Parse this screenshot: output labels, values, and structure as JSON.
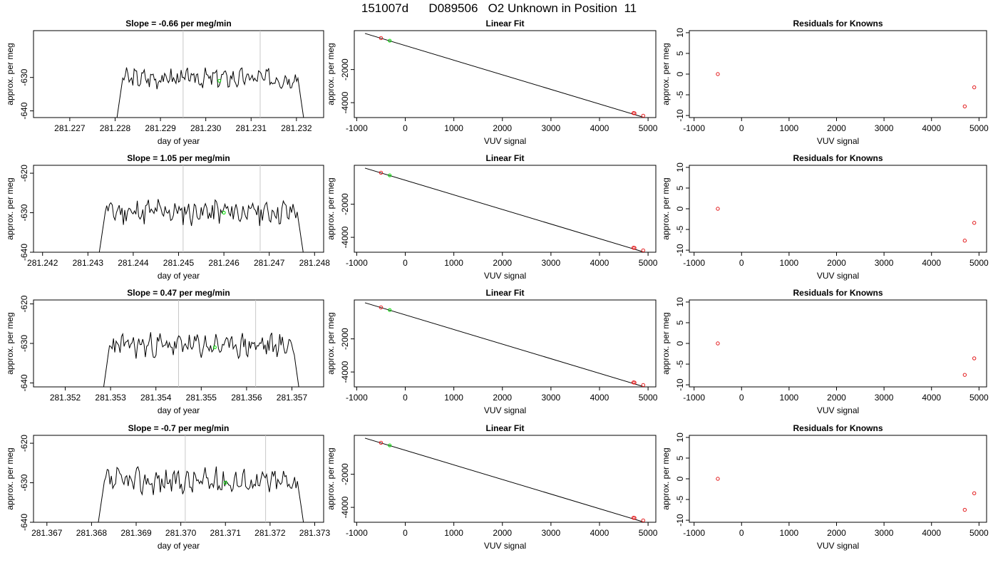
{
  "main_title": "151007d      D089506   O2 Unknown in Position  11",
  "colors": {
    "line": "#000000",
    "known_point": "#e31a1c",
    "unknown_point": "#00dd00",
    "vline": "#c8c8c8"
  },
  "chart_data": [
    {
      "type": "line",
      "title": "Slope =  -0.66  per meg/min",
      "xlabel": "day of year",
      "ylabel": "approx. per meg",
      "xlim": [
        281.2262,
        281.2326
      ],
      "ylim": [
        -642,
        -616
      ],
      "xticks": [
        "281.227",
        "281.228",
        "281.229",
        "281.230",
        "281.231",
        "281.232"
      ],
      "yticks": [
        "-640",
        "-630"
      ],
      "x_start": 281.228,
      "x_end": 281.2322,
      "base": -630.2,
      "amp": 2.3,
      "seed": 3,
      "vlines": [
        281.2295,
        281.2312
      ],
      "unknown_point": [
        281.2303,
        -631
      ]
    },
    {
      "type": "scatter",
      "title": "Linear Fit",
      "xlabel": "VUV signal",
      "ylabel": "approx. per meg",
      "xlim": [
        -1050,
        5160
      ],
      "ylim": [
        -4900,
        350
      ],
      "xticks": [
        "-1000",
        "0",
        "1000",
        "2000",
        "3000",
        "4000",
        "5000"
      ],
      "yticks": [
        "-2000",
        "-4000"
      ],
      "fit_line": [
        [
          -830,
          180
        ],
        [
          4950,
          -4920
        ]
      ],
      "known_points": [
        [
          -500,
          -100
        ],
        [
          4700,
          -4630
        ],
        [
          4720,
          -4640
        ],
        [
          4900,
          -4790
        ]
      ],
      "unknown_points": [
        [
          -320,
          -260
        ]
      ]
    },
    {
      "type": "scatter",
      "title": "Residuals for Knowns",
      "xlabel": "VUV signal",
      "ylabel": "approx. per meg",
      "xlim": [
        -1100,
        5160
      ],
      "ylim": [
        -10.5,
        10.5
      ],
      "xticks": [
        "-1000",
        "0",
        "1000",
        "2000",
        "3000",
        "4000",
        "5000"
      ],
      "yticks": [
        "-10",
        "-5",
        "0",
        "5",
        "10"
      ],
      "known_points": [
        [
          -500,
          0
        ],
        [
          4700,
          -7.8
        ],
        [
          4900,
          -3.2
        ]
      ]
    },
    {
      "type": "line",
      "title": "Slope =  1.05  per meg/min",
      "xlabel": "day of year",
      "ylabel": "approx. per meg",
      "xlim": [
        281.2418,
        281.2482
      ],
      "ylim": [
        -640,
        -618
      ],
      "xticks": [
        "281.242",
        "281.243",
        "281.244",
        "281.245",
        "281.246",
        "281.247",
        "281.248"
      ],
      "yticks": [
        "-640",
        "-630",
        "-620"
      ],
      "x_start": 281.2432,
      "x_end": 281.2478,
      "base": -629.8,
      "amp": 2.6,
      "seed": 11,
      "vlines": [
        281.2451,
        281.2468
      ],
      "unknown_point": [
        281.246,
        -630
      ]
    },
    {
      "type": "scatter",
      "title": "Linear Fit",
      "xlabel": "VUV signal",
      "ylabel": "approx. per meg",
      "xlim": [
        -1050,
        5160
      ],
      "ylim": [
        -4900,
        350
      ],
      "xticks": [
        "-1000",
        "0",
        "1000",
        "2000",
        "3000",
        "4000",
        "5000"
      ],
      "yticks": [
        "-2000",
        "-4000"
      ],
      "fit_line": [
        [
          -830,
          180
        ],
        [
          4950,
          -4920
        ]
      ],
      "known_points": [
        [
          -500,
          -100
        ],
        [
          4700,
          -4630
        ],
        [
          4720,
          -4640
        ],
        [
          4900,
          -4790
        ]
      ],
      "unknown_points": [
        [
          -320,
          -260
        ]
      ]
    },
    {
      "type": "scatter",
      "title": "Residuals for Knowns",
      "xlabel": "VUV signal",
      "ylabel": "approx. per meg",
      "xlim": [
        -1100,
        5160
      ],
      "ylim": [
        -10.5,
        10.5
      ],
      "xticks": [
        "-1000",
        "0",
        "1000",
        "2000",
        "3000",
        "4000",
        "5000"
      ],
      "yticks": [
        "-10",
        "-5",
        "0",
        "5",
        "10"
      ],
      "known_points": [
        [
          -500,
          0
        ],
        [
          4700,
          -7.7
        ],
        [
          4900,
          -3.4
        ]
      ]
    },
    {
      "type": "line",
      "title": "Slope =  0.47  per meg/min",
      "xlabel": "day of year",
      "ylabel": "approx. per meg",
      "xlim": [
        281.3513,
        281.3577
      ],
      "ylim": [
        -641,
        -619
      ],
      "xticks": [
        "281.352",
        "281.353",
        "281.354",
        "281.355",
        "281.356",
        "281.357"
      ],
      "yticks": [
        "-640",
        "-630",
        "-620"
      ],
      "x_start": 281.3528,
      "x_end": 281.3572,
      "base": -630.5,
      "amp": 2.4,
      "seed": 23,
      "vlines": [
        281.3545,
        281.3562
      ],
      "unknown_point": [
        281.3553,
        -631
      ]
    },
    {
      "type": "scatter",
      "title": "Linear Fit",
      "xlabel": "VUV signal",
      "ylabel": "approx. per meg",
      "xlim": [
        -1050,
        5160
      ],
      "ylim": [
        -4900,
        350
      ],
      "xticks": [
        "-1000",
        "0",
        "1000",
        "2000",
        "3000",
        "4000",
        "5000"
      ],
      "yticks": [
        "-2000",
        "-4000"
      ],
      "fit_line": [
        [
          -830,
          180
        ],
        [
          4950,
          -4920
        ]
      ],
      "known_points": [
        [
          -500,
          -100
        ],
        [
          4700,
          -4630
        ],
        [
          4720,
          -4640
        ],
        [
          4900,
          -4790
        ]
      ],
      "unknown_points": [
        [
          -320,
          -260
        ]
      ]
    },
    {
      "type": "scatter",
      "title": "Residuals for Knowns",
      "xlabel": "VUV signal",
      "ylabel": "approx. per meg",
      "xlim": [
        -1100,
        5160
      ],
      "ylim": [
        -10.5,
        10.5
      ],
      "xticks": [
        "-1000",
        "0",
        "1000",
        "2000",
        "3000",
        "4000",
        "5000"
      ],
      "yticks": [
        "-10",
        "-5",
        "0",
        "5",
        "10"
      ],
      "known_points": [
        [
          -500,
          0
        ],
        [
          4700,
          -7.6
        ],
        [
          4900,
          -3.6
        ]
      ]
    },
    {
      "type": "line",
      "title": "Slope =  -0.7  per meg/min",
      "xlabel": "day of year",
      "ylabel": "approx. per meg",
      "xlim": [
        281.3667,
        281.3732
      ],
      "ylim": [
        -640,
        -618
      ],
      "xticks": [
        "281.367",
        "281.368",
        "281.369",
        "281.370",
        "281.371",
        "281.372",
        "281.373"
      ],
      "yticks": [
        "-640",
        "-630",
        "-620"
      ],
      "x_start": 281.3681,
      "x_end": 281.3728,
      "base": -629.6,
      "amp": 2.6,
      "seed": 37,
      "vlines": [
        281.3701,
        281.3719
      ],
      "unknown_point": [
        281.371,
        -630
      ]
    },
    {
      "type": "scatter",
      "title": "Linear Fit",
      "xlabel": "VUV signal",
      "ylabel": "approx. per meg",
      "xlim": [
        -1050,
        5160
      ],
      "ylim": [
        -4900,
        350
      ],
      "xticks": [
        "-1000",
        "0",
        "1000",
        "2000",
        "3000",
        "4000",
        "5000"
      ],
      "yticks": [
        "-2000",
        "-4000"
      ],
      "fit_line": [
        [
          -830,
          180
        ],
        [
          4950,
          -4920
        ]
      ],
      "known_points": [
        [
          -500,
          -100
        ],
        [
          4700,
          -4630
        ],
        [
          4720,
          -4640
        ],
        [
          4900,
          -4790
        ]
      ],
      "unknown_points": [
        [
          -320,
          -260
        ]
      ]
    },
    {
      "type": "scatter",
      "title": "Residuals for Knowns",
      "xlabel": "VUV signal",
      "ylabel": "approx. per meg",
      "xlim": [
        -1100,
        5160
      ],
      "ylim": [
        -10.5,
        10.5
      ],
      "xticks": [
        "-1000",
        "0",
        "1000",
        "2000",
        "3000",
        "4000",
        "5000"
      ],
      "yticks": [
        "-10",
        "-5",
        "0",
        "5",
        "10"
      ],
      "known_points": [
        [
          -500,
          0
        ],
        [
          4700,
          -7.5
        ],
        [
          4900,
          -3.5
        ]
      ]
    }
  ]
}
